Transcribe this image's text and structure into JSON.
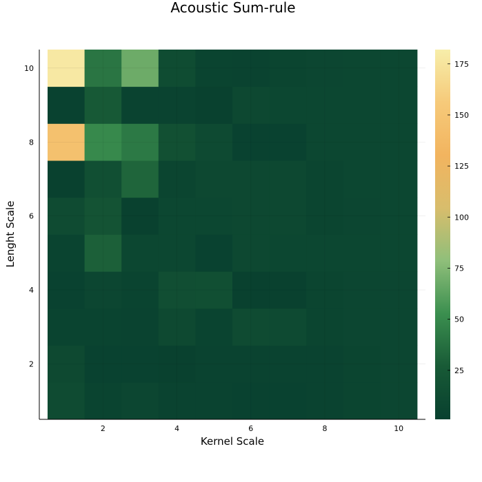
{
  "chart_data": {
    "type": "heatmap",
    "title": "Acoustic Sum-rule",
    "xlabel": "Kernel Scale",
    "ylabel": "Lenght Scale",
    "x": [
      1,
      2,
      3,
      4,
      5,
      6,
      7,
      8,
      9,
      10
    ],
    "y": [
      1,
      2,
      3,
      4,
      5,
      6,
      7,
      8,
      9,
      10
    ],
    "xlim": [
      0.5,
      10.5
    ],
    "ylim": [
      0.5,
      10.5
    ],
    "xticks": [
      2,
      4,
      6,
      8,
      10
    ],
    "yticks": [
      2,
      4,
      6,
      8,
      10
    ],
    "z": [
      [
        12,
        5,
        7,
        4,
        4,
        3,
        3,
        4,
        6,
        7
      ],
      [
        10,
        3,
        3,
        2,
        4,
        4,
        4,
        4,
        6,
        7
      ],
      [
        5,
        5,
        4,
        10,
        5,
        12,
        11,
        6,
        7,
        7
      ],
      [
        3,
        7,
        5,
        15,
        16,
        2,
        2,
        6,
        7,
        7
      ],
      [
        5,
        30,
        8,
        8,
        3,
        9,
        8,
        8,
        8,
        8
      ],
      [
        12,
        20,
        2,
        8,
        8,
        9,
        9,
        6,
        7,
        8
      ],
      [
        2,
        16,
        32,
        6,
        9,
        9,
        9,
        6,
        8,
        8
      ],
      [
        145,
        50,
        42,
        17,
        11,
        3,
        3,
        8,
        8,
        8
      ],
      [
        3,
        26,
        4,
        4,
        2,
        9,
        8,
        8,
        8,
        8
      ],
      [
        178,
        40,
        68,
        13,
        5,
        4,
        6,
        7,
        8,
        8
      ]
    ],
    "colorbar": {
      "min": 1,
      "max": 182,
      "ticks": [
        25,
        50,
        75,
        100,
        125,
        150,
        175
      ],
      "colormap": [
        "#08402f",
        "#185a36",
        "#3b8f4f",
        "#8fbf7a",
        "#d8bd6c",
        "#f2b45f",
        "#f6ca7a",
        "#f7eeaa"
      ]
    },
    "grid": true
  }
}
